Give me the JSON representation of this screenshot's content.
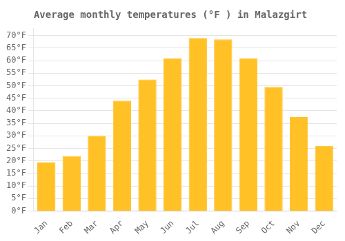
{
  "chart_data": {
    "type": "bar",
    "title": "Average monthly temperatures (°F ) in Malazgirt",
    "categories": [
      "Jan",
      "Feb",
      "Mar",
      "Apr",
      "May",
      "Jun",
      "Jul",
      "Aug",
      "Sep",
      "Oct",
      "Nov",
      "Dec"
    ],
    "values": [
      19.5,
      22,
      30,
      44,
      52.5,
      61,
      69,
      68.5,
      61,
      49.5,
      37.5,
      26
    ],
    "color": "#FFC125",
    "ylim": [
      0,
      73
    ],
    "yticks": [
      {
        "value": 0,
        "label": "0°F"
      },
      {
        "value": 5,
        "label": "5°F"
      },
      {
        "value": 10,
        "label": "10°F"
      },
      {
        "value": 15,
        "label": "15°F"
      },
      {
        "value": 20,
        "label": "20°F"
      },
      {
        "value": 25,
        "label": "25°F"
      },
      {
        "value": 30,
        "label": "30°F"
      },
      {
        "value": 35,
        "label": "35°F"
      },
      {
        "value": 40,
        "label": "40°F"
      },
      {
        "value": 45,
        "label": "45°F"
      },
      {
        "value": 50,
        "label": "50°F"
      },
      {
        "value": 55,
        "label": "55°F"
      },
      {
        "value": 60,
        "label": "60°F"
      },
      {
        "value": 65,
        "label": "65°F"
      },
      {
        "value": 70,
        "label": "70°F"
      }
    ],
    "grid": true
  }
}
